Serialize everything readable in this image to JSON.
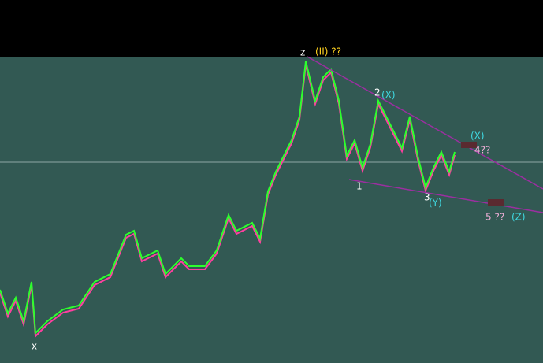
{
  "annotations": {
    "top_z": "z",
    "top_wave": "(II) ??",
    "label_2": "2",
    "label_x_upper": "(X)",
    "label_x_right": "(X)",
    "label_4": "4??",
    "label_1": "1",
    "label_3": "3",
    "label_y": "(Y)",
    "label_5": "5 ??",
    "label_z": "(Z)",
    "label_x_low": "x"
  }
}
